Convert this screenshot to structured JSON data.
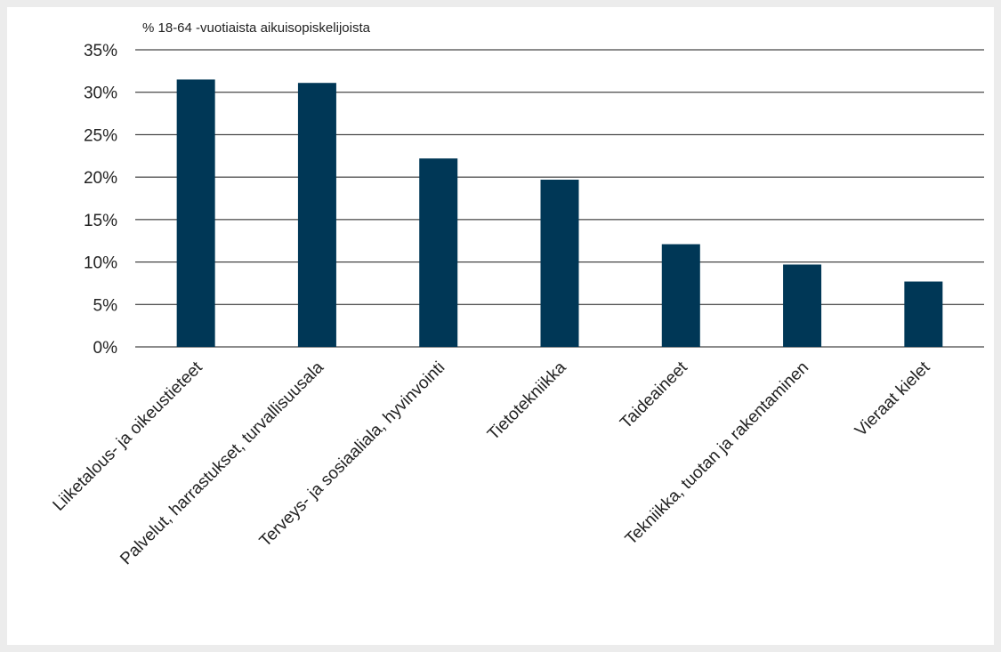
{
  "chart_data": {
    "type": "bar",
    "ylabel": "% 18-64 -vuotiaista aikuisopiskelijoista",
    "categories": [
      "Liiketalous- ja oikeustieteet",
      "Palvelut, harrastukset, turvallisuusala",
      "Terveys- ja sosiaaliala, hyvinvointi",
      "Tietotekniikka",
      "Taideaineet",
      "Tekniikka, tuotan ja rakentaminen",
      "Vieraat kielet"
    ],
    "values": [
      31.5,
      31.1,
      22.2,
      19.7,
      12.1,
      9.7,
      7.7
    ],
    "y_ticks": [
      "0%",
      "5%",
      "10%",
      "15%",
      "20%",
      "25%",
      "30%",
      "35%"
    ],
    "ylim": [
      0,
      35
    ],
    "grid": true,
    "bar_color": "#003756"
  }
}
